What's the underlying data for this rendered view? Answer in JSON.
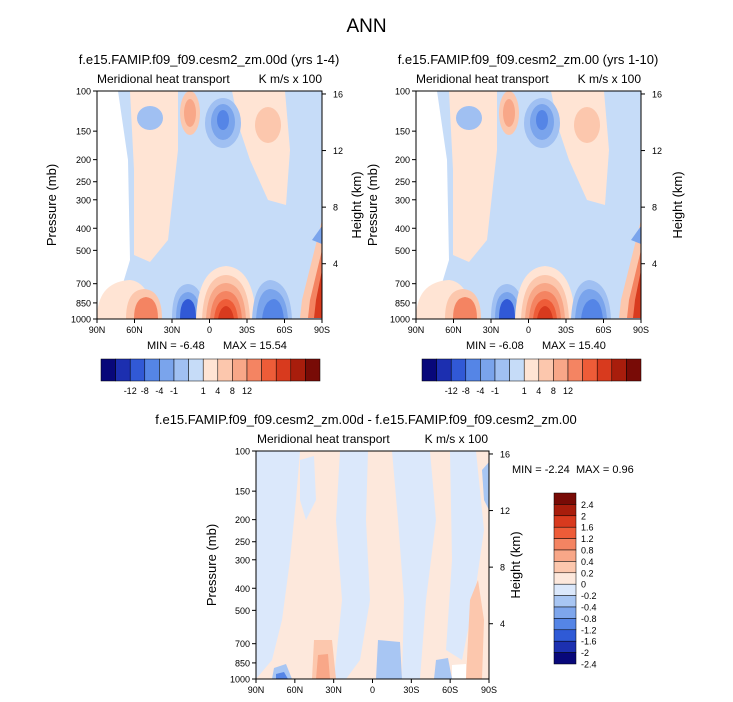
{
  "page_title": "ANN",
  "chart_data": [
    {
      "type": "heatmap",
      "title": "f.e15.FAMIP.f09_f09.cesm2_zm.00d (yrs 1-4)",
      "subtitle_left": "Meridional heat transport",
      "subtitle_right": "K m/s x 100",
      "ylabel": "Pressure (mb)",
      "ylabel_right": "Height (km)",
      "x_tick_labels": [
        "90N",
        "60N",
        "30N",
        "0",
        "30S",
        "60S",
        "90S"
      ],
      "y_tick_labels": [
        "100",
        "150",
        "200",
        "250",
        "300",
        "400",
        "500",
        "700",
        "850",
        "1000"
      ],
      "y_right_tick_labels": [
        "16",
        "12",
        "8",
        "4"
      ],
      "min_label": "MIN = -6.48",
      "max_label": "MAX = 15.54",
      "colorbar_labels": [
        "-12",
        "-8",
        "-4",
        "-1",
        "1",
        "4",
        "8",
        "12"
      ],
      "ylim": [
        1000,
        100
      ],
      "y_scale": "log"
    },
    {
      "type": "heatmap",
      "title": "f.e15.FAMIP.f09_f09.cesm2_zm.00 (yrs 1-10)",
      "subtitle_left": "Meridional heat transport",
      "subtitle_right": "K m/s x 100",
      "ylabel": "Pressure (mb)",
      "ylabel_right": "Height (km)",
      "x_tick_labels": [
        "90N",
        "60N",
        "30N",
        "0",
        "30S",
        "60S",
        "90S"
      ],
      "y_tick_labels": [
        "100",
        "150",
        "200",
        "250",
        "300",
        "400",
        "500",
        "700",
        "850",
        "1000"
      ],
      "y_right_tick_labels": [
        "16",
        "12",
        "8",
        "4"
      ],
      "min_label": "MIN = -6.08",
      "max_label": "MAX = 15.40",
      "colorbar_labels": [
        "-12",
        "-8",
        "-4",
        "-1",
        "1",
        "4",
        "8",
        "12"
      ],
      "ylim": [
        1000,
        100
      ],
      "y_scale": "log"
    },
    {
      "type": "heatmap",
      "title": "f.e15.FAMIP.f09_f09.cesm2_zm.00d - f.e15.FAMIP.f09_f09.cesm2_zm.00",
      "subtitle_left": "Meridional heat transport",
      "subtitle_right": "K m/s x 100",
      "ylabel": "Pressure (mb)",
      "ylabel_right": "Height (km)",
      "x_tick_labels": [
        "90N",
        "60N",
        "30N",
        "0",
        "30S",
        "60S",
        "90S"
      ],
      "y_tick_labels": [
        "100",
        "150",
        "200",
        "250",
        "300",
        "400",
        "500",
        "700",
        "850",
        "1000"
      ],
      "y_right_tick_labels": [
        "16",
        "12",
        "8",
        "4"
      ],
      "min_label": "MIN = -2.24",
      "max_label": "MAX =  0.96",
      "colorbar_labels": [
        "2.4",
        "2",
        "1.6",
        "1.2",
        "0.8",
        "0.4",
        "0.2",
        "0",
        "-0.2",
        "-0.4",
        "-0.8",
        "-1.2",
        "-1.6",
        "-2",
        "-2.4"
      ],
      "ylim": [
        1000,
        100
      ],
      "y_scale": "log"
    }
  ],
  "palette_main": [
    "#08087a",
    "#1c2fb0",
    "#3159d6",
    "#5585e6",
    "#7aa4ec",
    "#a0c0f2",
    "#c6dcf8",
    "#ffe4d4",
    "#fcc7ad",
    "#f8a788",
    "#f48462",
    "#ee5c38",
    "#d83a1e",
    "#a81d0c",
    "#780b06"
  ],
  "palette_diff": [
    "#780b06",
    "#a81d0c",
    "#d83a1e",
    "#ee5c38",
    "#f48462",
    "#f8a788",
    "#fcc7ad",
    "#fde8dc",
    "#dbe8fb",
    "#a8c6f3",
    "#7ea6ec",
    "#5585e6",
    "#2f5ad6",
    "#1c30b0",
    "#08087a"
  ]
}
